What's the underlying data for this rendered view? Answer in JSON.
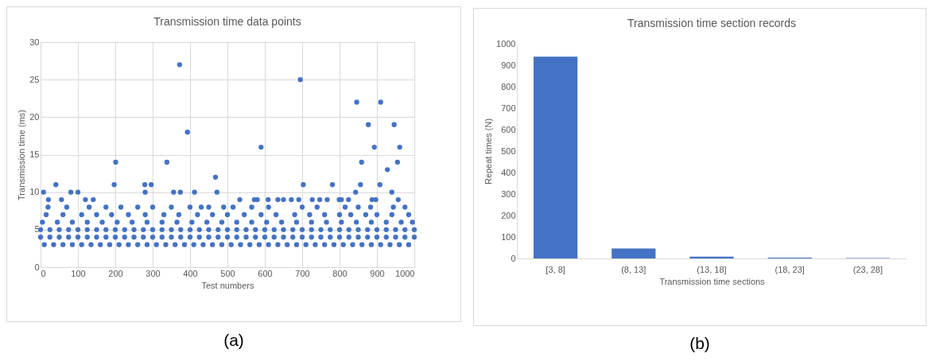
{
  "chart_data": [
    {
      "type": "scatter",
      "title": "Transmission time data points",
      "xlabel": "Test numbers",
      "ylabel": "Transmission  time (ms)",
      "color": "#4472c4",
      "marker": "circle",
      "grid": true,
      "xlim": [
        0,
        1000
      ],
      "xticks": [
        0,
        100,
        200,
        300,
        400,
        500,
        600,
        700,
        800,
        900,
        1000
      ],
      "ylim": [
        0,
        30
      ],
      "yticks": [
        0,
        5,
        10,
        15,
        20,
        25,
        30
      ],
      "x": [
        0,
        25,
        50,
        75,
        100,
        125,
        150,
        175,
        200,
        225,
        250,
        275,
        300,
        325,
        350,
        375,
        400,
        425,
        450,
        475,
        500,
        525,
        550,
        575,
        600,
        625,
        650,
        675,
        700,
        725,
        750,
        775,
        800,
        825,
        850,
        875,
        900,
        925,
        950,
        975,
        1000,
        0,
        25,
        50,
        75,
        100,
        125,
        150,
        175,
        200,
        225,
        250,
        275,
        300,
        325,
        350,
        375,
        400,
        425,
        450,
        475,
        500,
        525,
        550,
        575,
        600,
        625,
        650,
        675,
        700,
        725,
        750,
        775,
        800,
        825,
        850,
        875,
        900,
        925,
        950,
        975,
        1000,
        10,
        35,
        60,
        85,
        110,
        135,
        160,
        185,
        210,
        235,
        260,
        285,
        310,
        335,
        360,
        385,
        410,
        435,
        460,
        485,
        510,
        535,
        560,
        585,
        610,
        635,
        660,
        685,
        710,
        735,
        760,
        785,
        810,
        835,
        860,
        885,
        910,
        935,
        960,
        985,
        5,
        45,
        85,
        125,
        165,
        205,
        245,
        285,
        325,
        365,
        405,
        445,
        485,
        525,
        565,
        605,
        645,
        685,
        725,
        765,
        805,
        845,
        885,
        925,
        965,
        995,
        15,
        60,
        110,
        150,
        190,
        235,
        280,
        330,
        370,
        420,
        460,
        500,
        545,
        590,
        630,
        680,
        720,
        760,
        800,
        830,
        870,
        900,
        940,
        985,
        20,
        70,
        130,
        175,
        215,
        260,
        300,
        350,
        400,
        430,
        450,
        490,
        515,
        565,
        610,
        700,
        740,
        815,
        850,
        883,
        944,
        975,
        21,
        56,
        120,
        141,
        533,
        572,
        580,
        609,
        635,
        650,
        671,
        691,
        727,
        747,
        767,
        799,
        805,
        824,
        887,
        897,
        957,
        8,
        81,
        100,
        280,
        356,
        374,
        412,
        472,
        843,
        940,
        41,
        197,
        279,
        296,
        703,
        781,
        856,
        908,
        468,
        928,
        201,
        338,
        859,
        955,
        590,
        893,
        961,
        393,
        877,
        946,
        846,
        910,
        695,
        372
      ],
      "values": [
        4,
        4,
        4,
        4,
        4,
        4,
        4,
        4,
        4,
        4,
        4,
        4,
        4,
        4,
        4,
        4,
        4,
        4,
        4,
        4,
        4,
        4,
        4,
        4,
        4,
        4,
        4,
        4,
        4,
        4,
        4,
        4,
        4,
        4,
        4,
        4,
        4,
        4,
        4,
        4,
        4,
        5,
        5,
        5,
        5,
        5,
        5,
        5,
        5,
        5,
        5,
        5,
        5,
        5,
        5,
        5,
        5,
        5,
        5,
        5,
        5,
        5,
        5,
        5,
        5,
        5,
        5,
        5,
        5,
        5,
        5,
        5,
        5,
        5,
        5,
        5,
        5,
        5,
        5,
        5,
        5,
        5,
        3,
        3,
        3,
        3,
        3,
        3,
        3,
        3,
        3,
        3,
        3,
        3,
        3,
        3,
        3,
        3,
        3,
        3,
        3,
        3,
        3,
        3,
        3,
        3,
        3,
        3,
        3,
        3,
        3,
        3,
        3,
        3,
        3,
        3,
        3,
        3,
        3,
        3,
        3,
        3,
        6,
        6,
        6,
        6,
        6,
        6,
        6,
        6,
        6,
        6,
        6,
        6,
        6,
        6,
        6,
        6,
        6,
        6,
        6,
        6,
        6,
        6,
        6,
        6,
        6,
        6,
        7,
        7,
        7,
        7,
        7,
        7,
        7,
        7,
        7,
        7,
        7,
        7,
        7,
        7,
        7,
        7,
        7,
        7,
        7,
        7,
        7,
        7,
        7,
        7,
        8,
        8,
        8,
        8,
        8,
        8,
        8,
        8,
        8,
        8,
        8,
        8,
        8,
        8,
        8,
        8,
        8,
        8,
        8,
        8,
        8,
        8,
        9,
        9,
        9,
        9,
        9,
        9,
        9,
        9,
        9,
        9,
        9,
        9,
        9,
        9,
        9,
        9,
        9,
        9,
        9,
        9,
        9,
        10,
        10,
        10,
        10,
        10,
        10,
        10,
        10,
        10,
        10,
        11,
        11,
        11,
        11,
        11,
        11,
        11,
        11,
        12,
        13,
        14,
        14,
        14,
        14,
        16,
        16,
        16,
        18,
        19,
        19,
        22,
        22,
        25,
        27
      ],
      "annotations": [
        "(a)"
      ]
    },
    {
      "type": "bar",
      "title": "Transmission time section records",
      "xlabel": "Transmission time sections",
      "ylabel": "Repeat times (N)",
      "color": "#4472c4",
      "grid": false,
      "categories": [
        "[3, 8]",
        "(8, 13]",
        "(13, 18]",
        "(18, 23]",
        "(23, 28]"
      ],
      "values": [
        940,
        46,
        8,
        4,
        2
      ],
      "ylim": [
        0,
        1000
      ],
      "yticks": [
        0,
        100,
        200,
        300,
        400,
        500,
        600,
        700,
        800,
        900,
        1000
      ],
      "annotations": [
        "(b)"
      ]
    }
  ]
}
